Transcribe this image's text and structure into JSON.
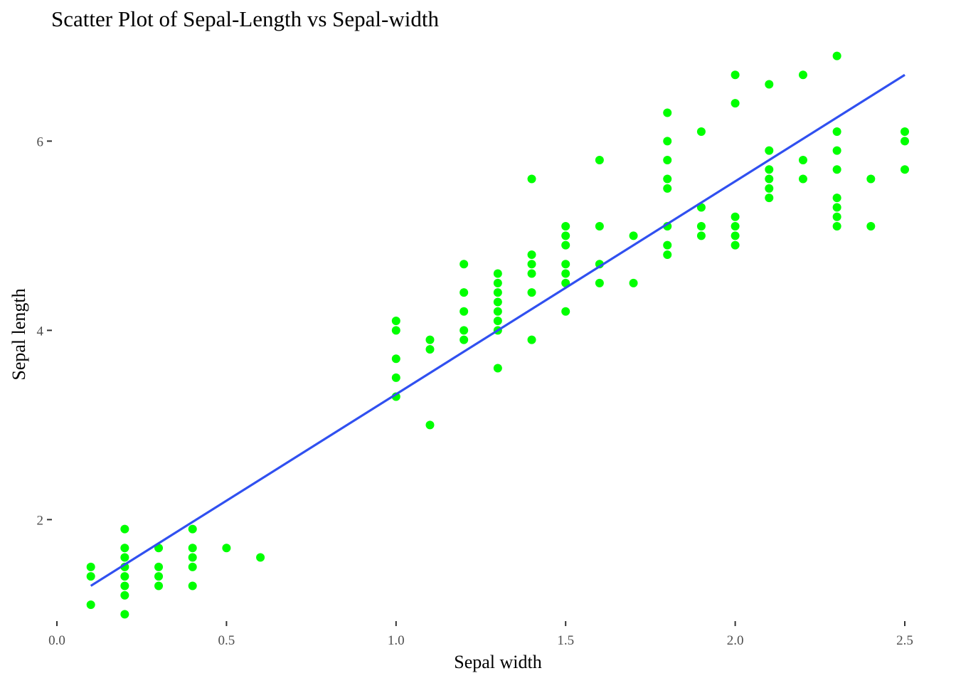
{
  "chart_data": {
    "type": "scatter",
    "title": "Scatter Plot of Sepal-Length vs Sepal-width",
    "xlabel": "Sepal width",
    "ylabel": "Sepal length",
    "xlim": [
      0.0,
      2.5
    ],
    "ylim": [
      0.95,
      6.95
    ],
    "x_ticks": [
      0.0,
      0.5,
      1.0,
      1.5,
      2.0,
      2.5
    ],
    "x_tick_labels": [
      "0.0",
      "0.5",
      "1.0",
      "1.5",
      "2.0",
      "2.5"
    ],
    "y_ticks": [
      2,
      4,
      6
    ],
    "y_tick_labels": [
      "2",
      "4",
      "6"
    ],
    "grid": false,
    "legend": "none",
    "point_color": "#00ff00",
    "line_color": "#3050f0",
    "trend_line": {
      "x": [
        0.1,
        2.5
      ],
      "y": [
        1.3,
        6.7
      ]
    },
    "points": [
      [
        0.1,
        1.5
      ],
      [
        0.1,
        1.4
      ],
      [
        0.1,
        1.1
      ],
      [
        0.2,
        1.9
      ],
      [
        0.2,
        1.7
      ],
      [
        0.2,
        1.6
      ],
      [
        0.2,
        1.5
      ],
      [
        0.2,
        1.4
      ],
      [
        0.2,
        1.3
      ],
      [
        0.2,
        1.2
      ],
      [
        0.2,
        1.0
      ],
      [
        0.3,
        1.7
      ],
      [
        0.3,
        1.5
      ],
      [
        0.3,
        1.4
      ],
      [
        0.3,
        1.3
      ],
      [
        0.4,
        1.9
      ],
      [
        0.4,
        1.7
      ],
      [
        0.4,
        1.6
      ],
      [
        0.4,
        1.5
      ],
      [
        0.4,
        1.3
      ],
      [
        0.5,
        1.7
      ],
      [
        0.6,
        1.6
      ],
      [
        1.0,
        4.1
      ],
      [
        1.0,
        4.0
      ],
      [
        1.0,
        3.7
      ],
      [
        1.0,
        3.5
      ],
      [
        1.0,
        3.3
      ],
      [
        1.1,
        3.9
      ],
      [
        1.1,
        3.8
      ],
      [
        1.1,
        3.0
      ],
      [
        1.2,
        4.7
      ],
      [
        1.2,
        4.4
      ],
      [
        1.2,
        4.2
      ],
      [
        1.2,
        4.0
      ],
      [
        1.2,
        3.9
      ],
      [
        1.3,
        4.6
      ],
      [
        1.3,
        4.5
      ],
      [
        1.3,
        4.4
      ],
      [
        1.3,
        4.3
      ],
      [
        1.3,
        4.2
      ],
      [
        1.3,
        4.1
      ],
      [
        1.3,
        4.0
      ],
      [
        1.3,
        3.6
      ],
      [
        1.4,
        5.6
      ],
      [
        1.4,
        4.8
      ],
      [
        1.4,
        4.7
      ],
      [
        1.4,
        4.6
      ],
      [
        1.4,
        4.4
      ],
      [
        1.4,
        3.9
      ],
      [
        1.5,
        5.1
      ],
      [
        1.5,
        5.0
      ],
      [
        1.5,
        4.9
      ],
      [
        1.5,
        4.7
      ],
      [
        1.5,
        4.6
      ],
      [
        1.5,
        4.5
      ],
      [
        1.5,
        4.2
      ],
      [
        1.6,
        5.8
      ],
      [
        1.6,
        5.1
      ],
      [
        1.6,
        4.7
      ],
      [
        1.6,
        4.5
      ],
      [
        1.7,
        5.0
      ],
      [
        1.7,
        4.5
      ],
      [
        1.8,
        6.3
      ],
      [
        1.8,
        6.0
      ],
      [
        1.8,
        5.8
      ],
      [
        1.8,
        5.6
      ],
      [
        1.8,
        5.5
      ],
      [
        1.8,
        5.1
      ],
      [
        1.8,
        4.9
      ],
      [
        1.8,
        4.8
      ],
      [
        1.9,
        6.1
      ],
      [
        1.9,
        5.3
      ],
      [
        1.9,
        5.1
      ],
      [
        1.9,
        5.0
      ],
      [
        2.0,
        6.7
      ],
      [
        2.0,
        6.4
      ],
      [
        2.0,
        5.2
      ],
      [
        2.0,
        5.1
      ],
      [
        2.0,
        5.0
      ],
      [
        2.0,
        4.9
      ],
      [
        2.1,
        6.6
      ],
      [
        2.1,
        5.9
      ],
      [
        2.1,
        5.7
      ],
      [
        2.1,
        5.6
      ],
      [
        2.1,
        5.5
      ],
      [
        2.1,
        5.4
      ],
      [
        2.2,
        6.7
      ],
      [
        2.2,
        5.8
      ],
      [
        2.2,
        5.6
      ],
      [
        2.3,
        6.9
      ],
      [
        2.3,
        6.1
      ],
      [
        2.3,
        5.9
      ],
      [
        2.3,
        5.7
      ],
      [
        2.3,
        5.4
      ],
      [
        2.3,
        5.3
      ],
      [
        2.3,
        5.2
      ],
      [
        2.3,
        5.1
      ],
      [
        2.4,
        5.6
      ],
      [
        2.4,
        5.1
      ],
      [
        2.5,
        6.1
      ],
      [
        2.5,
        6.0
      ],
      [
        2.5,
        5.7
      ]
    ]
  }
}
